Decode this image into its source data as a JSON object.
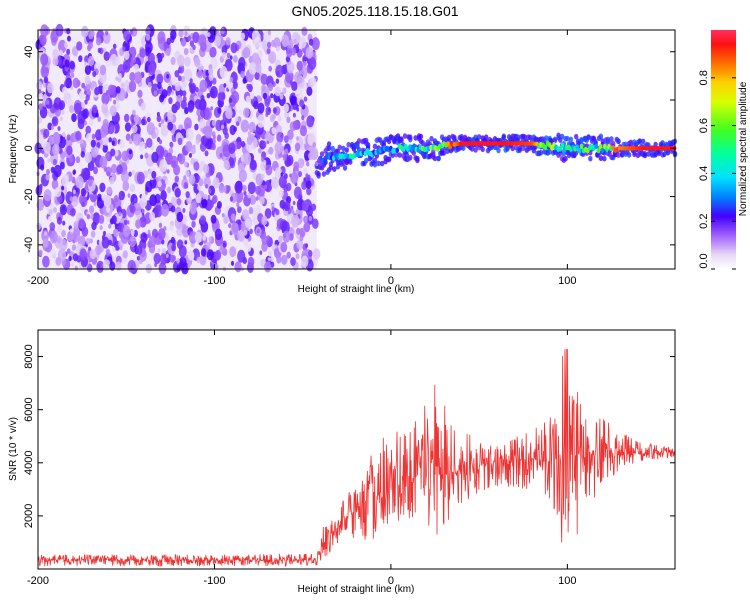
{
  "title": "GN05.2025.118.15.18.G01",
  "chart_data": [
    {
      "type": "heatmap",
      "name": "spectrogram",
      "xlabel": "Height of straight line (km)",
      "ylabel": "Frequency (Hz)",
      "xlim": [
        -200,
        161
      ],
      "ylim": [
        -50,
        49
      ],
      "xticks": [
        -200,
        -100,
        0,
        100
      ],
      "yticks": [
        -40,
        -20,
        0,
        20,
        40
      ],
      "noise_region_x": [
        -200,
        -42
      ],
      "track_points": [
        {
          "x": -42,
          "y": -6,
          "amp": 0.15
        },
        {
          "x": -35,
          "y": -4,
          "amp": 0.3
        },
        {
          "x": -25,
          "y": -3,
          "amp": 0.4
        },
        {
          "x": -15,
          "y": -2,
          "amp": 0.35
        },
        {
          "x": -5,
          "y": -1,
          "amp": 0.35
        },
        {
          "x": 5,
          "y": 0,
          "amp": 0.4
        },
        {
          "x": 15,
          "y": 0,
          "amp": 0.45
        },
        {
          "x": 25,
          "y": 0,
          "amp": 0.55
        },
        {
          "x": 30,
          "y": 1,
          "amp": 0.65
        },
        {
          "x": 40,
          "y": 2,
          "amp": 0.95
        },
        {
          "x": 60,
          "y": 2,
          "amp": 0.95
        },
        {
          "x": 80,
          "y": 2,
          "amp": 0.9
        },
        {
          "x": 90,
          "y": 1,
          "amp": 0.55
        },
        {
          "x": 100,
          "y": 0,
          "amp": 0.45
        },
        {
          "x": 110,
          "y": 0,
          "amp": 0.55
        },
        {
          "x": 120,
          "y": 0,
          "amp": 0.5
        },
        {
          "x": 130,
          "y": 0,
          "amp": 0.85
        },
        {
          "x": 145,
          "y": 0,
          "amp": 0.95
        },
        {
          "x": 161,
          "y": 0,
          "amp": 0.95
        }
      ],
      "colorbar": {
        "label": "Normalized spectral amplitude",
        "ticks": [
          "0.0",
          "0.2",
          "0.4",
          "0.6",
          "0.8"
        ],
        "tick_values": [
          0.0,
          0.2,
          0.4,
          0.6,
          0.8
        ],
        "range": [
          0,
          1
        ]
      }
    },
    {
      "type": "line",
      "name": "snr",
      "xlabel": "Height of straight line (km)",
      "ylabel": "SNR (10 * v/v)",
      "xlim": [
        -200,
        161
      ],
      "ylim": [
        0,
        9000
      ],
      "xticks": [
        -200,
        -100,
        0,
        100
      ],
      "yticks": [
        2000,
        4000,
        6000,
        8000
      ],
      "series": [
        {
          "color": "#ee3333",
          "envelope_x": [
            -200,
            -160,
            -120,
            -80,
            -42,
            -38,
            -30,
            -20,
            -10,
            0,
            10,
            20,
            25,
            30,
            40,
            50,
            60,
            70,
            80,
            90,
            95,
            100,
            105,
            110,
            120,
            130,
            140,
            150,
            161
          ],
          "envelope_lo": [
            100,
            100,
            100,
            100,
            100,
            300,
            800,
            1000,
            900,
            1500,
            1500,
            1200,
            800,
            800,
            2400,
            2800,
            3000,
            3000,
            3000,
            2600,
            1000,
            500,
            800,
            2000,
            3000,
            3800,
            4000,
            4100,
            4200
          ],
          "envelope_hi": [
            550,
            550,
            550,
            550,
            600,
            1800,
            2500,
            3200,
            4600,
            5300,
            5200,
            6300,
            7000,
            6700,
            5300,
            4800,
            4700,
            5000,
            5300,
            5900,
            7700,
            8900,
            7200,
            6200,
            5800,
            5200,
            4800,
            4700,
            4600
          ],
          "mean": [
            350,
            330,
            330,
            330,
            350,
            900,
            1700,
            2200,
            2600,
            3000,
            3200,
            3500,
            3600,
            3500,
            3800,
            3900,
            4000,
            4100,
            4150,
            4200,
            4300,
            4300,
            4200,
            4200,
            4250,
            4300,
            4350,
            4400,
            4400
          ]
        }
      ]
    }
  ]
}
